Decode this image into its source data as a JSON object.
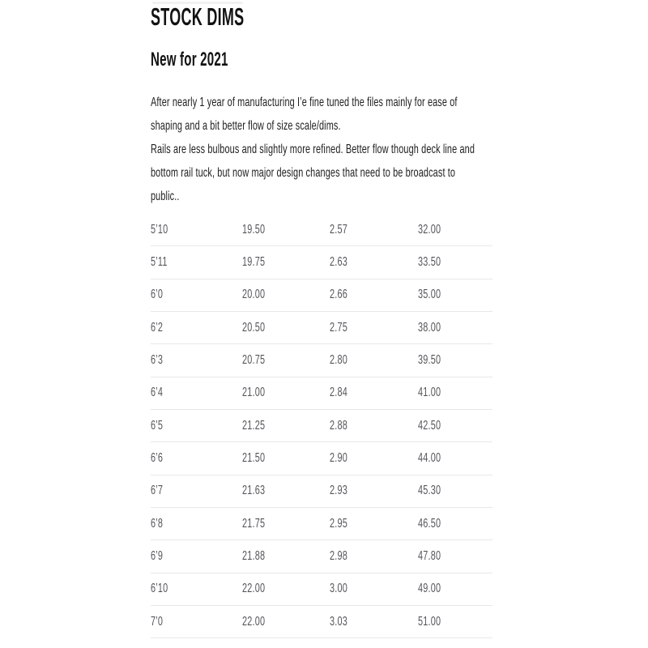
{
  "header": {
    "title": "STOCK DIMS",
    "subtitle": "New for 2021"
  },
  "intro": {
    "lines": [
      "After nearly 1 year of manufacturing I’e fine tuned the files mainly for ease of",
      "shaping and a bit better flow of size scale/dims.",
      "Rails are less bulbous and slightly more refined. Better flow though deck line and",
      "bottom rail tuck, but now major design changes that need to be broadcast to",
      "public.."
    ]
  },
  "table": {
    "rows": [
      [
        "5’10",
        "19.50",
        "2.57",
        "32.00"
      ],
      [
        "5’11",
        "19.75",
        "2.63",
        "33.50"
      ],
      [
        "6’0",
        "20.00",
        "2.66",
        "35.00"
      ],
      [
        "6’2",
        "20.50",
        "2.75",
        "38.00"
      ],
      [
        "6’3",
        "20.75",
        "2.80",
        "39.50"
      ],
      [
        "6’4",
        "21.00",
        "2.84",
        "41.00"
      ],
      [
        "6’5",
        "21.25",
        "2.88",
        "42.50"
      ],
      [
        "6’6",
        "21.50",
        "2.90",
        "44.00"
      ],
      [
        "6’7",
        "21.63",
        "2.93",
        "45.30"
      ],
      [
        "6’8",
        "21.75",
        "2.95",
        "46.50"
      ],
      [
        "6’9",
        "21.88",
        "2.98",
        "47.80"
      ],
      [
        "6’10",
        "22.00",
        "3.00",
        "49.00"
      ],
      [
        "7’0",
        "22.00",
        "3.03",
        "51.00"
      ]
    ]
  },
  "colors": {
    "background": "#ffffff",
    "heading_text": "#121212",
    "body_text": "#202020",
    "table_text": "#54555a",
    "row_border": "#e8e8e8"
  }
}
